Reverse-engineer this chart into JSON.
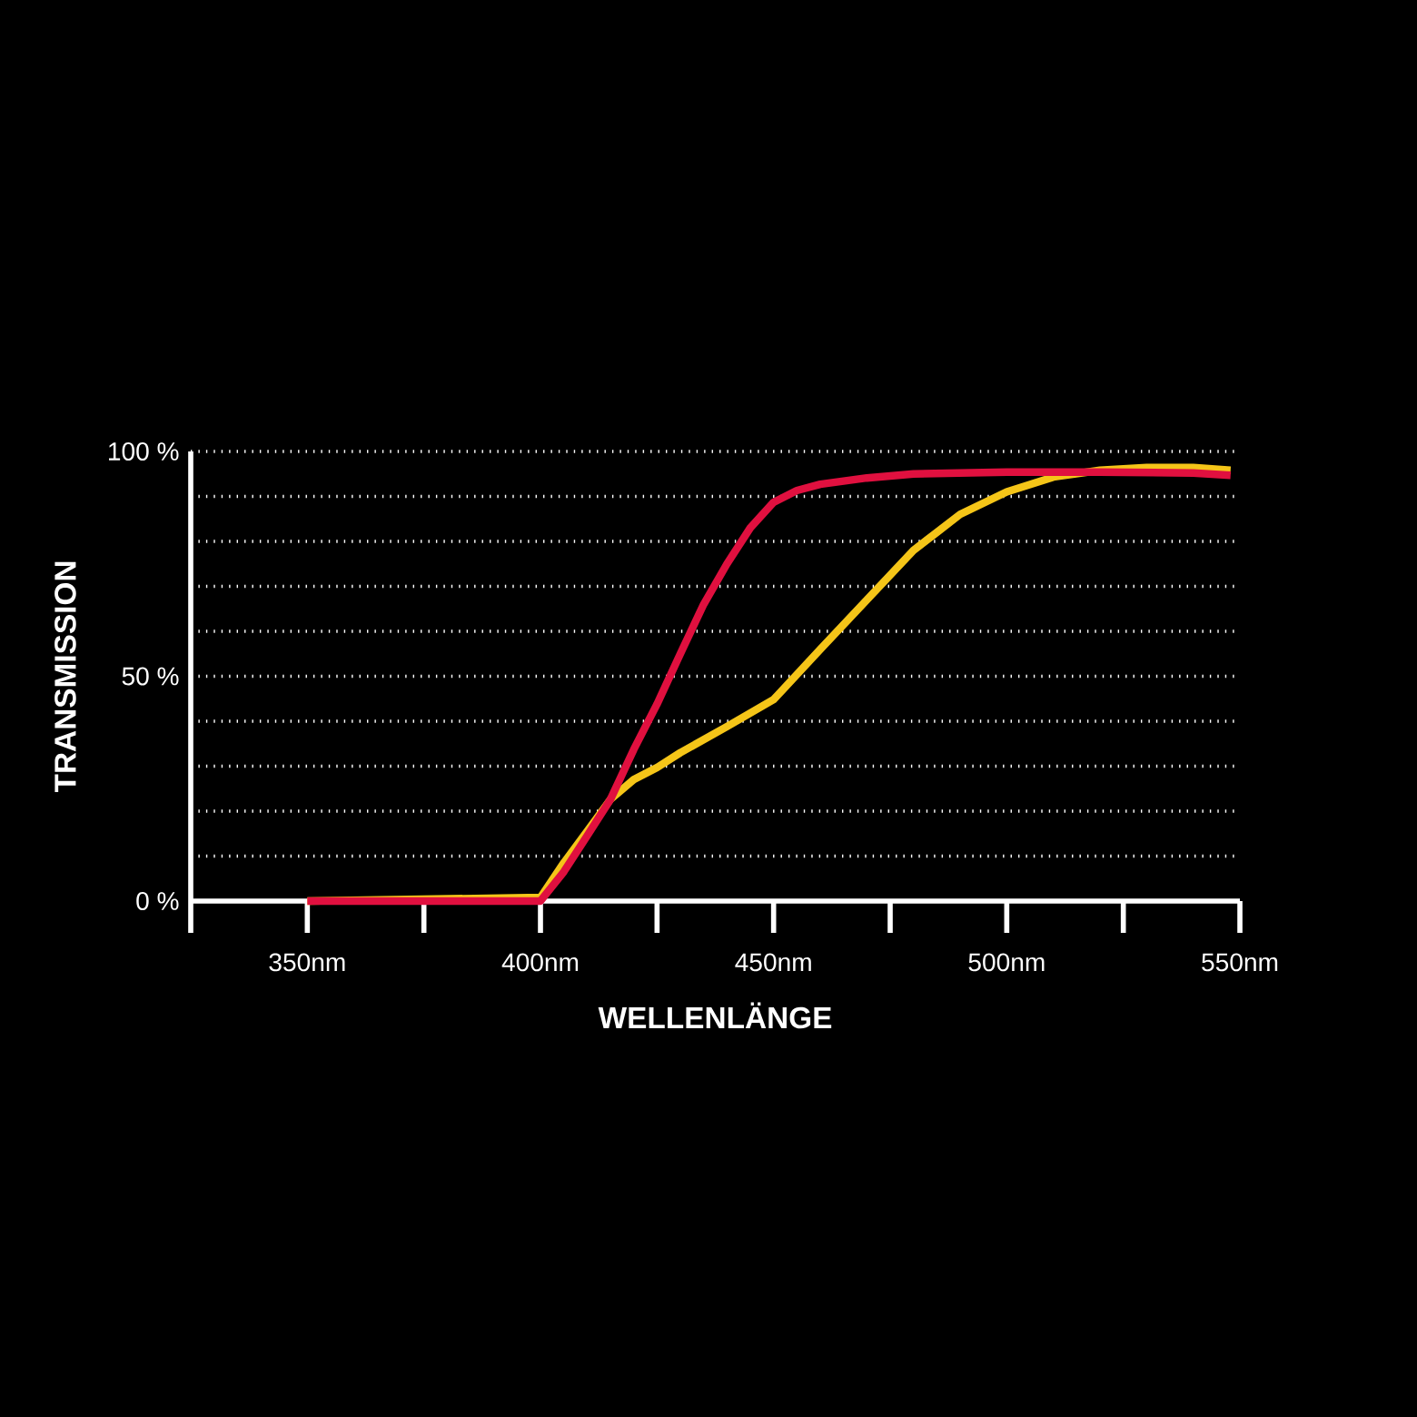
{
  "chart_data": {
    "type": "line",
    "xlabel": "WELLENLÄNGE",
    "ylabel": "TRANSMISSION",
    "xlim": [
      325,
      550
    ],
    "ylim": [
      0,
      100
    ],
    "xticks": [
      {
        "value": 325,
        "label": null
      },
      {
        "value": 350,
        "label": "350nm"
      },
      {
        "value": 400,
        "label": "400nm"
      },
      {
        "value": 450,
        "label": "450nm"
      },
      {
        "value": 500,
        "label": "500nm"
      },
      {
        "value": 550,
        "label": "550nm"
      }
    ],
    "yticks": [
      {
        "value": 0,
        "label": "0 %"
      },
      {
        "value": 10,
        "label": null
      },
      {
        "value": 20,
        "label": null
      },
      {
        "value": 30,
        "label": null
      },
      {
        "value": 40,
        "label": null
      },
      {
        "value": 50,
        "label": "50 %"
      },
      {
        "value": 60,
        "label": null
      },
      {
        "value": 70,
        "label": null
      },
      {
        "value": 80,
        "label": null
      },
      {
        "value": 90,
        "label": null
      },
      {
        "value": 100,
        "label": "100 %"
      }
    ],
    "grid": "y",
    "series": [
      {
        "color": "#f5c518",
        "x": [
          350,
          400,
          405,
          410,
          415,
          420,
          425,
          430,
          440,
          450,
          460,
          470,
          480,
          485,
          490,
          500,
          510,
          520,
          530,
          540,
          548
        ],
        "values": [
          0,
          0.8,
          8.5,
          15.5,
          22.6,
          27,
          29.7,
          33,
          38.8,
          44.8,
          56,
          67,
          78,
          82,
          86,
          91,
          94.3,
          95.8,
          96.4,
          96.4,
          95.8
        ]
      },
      {
        "color": "#e0103f",
        "x": [
          350,
          400,
          405,
          410,
          415,
          420,
          425,
          430,
          435,
          440,
          445,
          450,
          455,
          460,
          470,
          480,
          500,
          520,
          540,
          548
        ],
        "values": [
          0,
          0,
          6.5,
          14.5,
          22.6,
          33.7,
          43.8,
          55,
          66,
          75,
          83,
          88.7,
          91.3,
          92.7,
          94.1,
          95,
          95.4,
          95.4,
          95.2,
          94.7
        ]
      }
    ]
  }
}
